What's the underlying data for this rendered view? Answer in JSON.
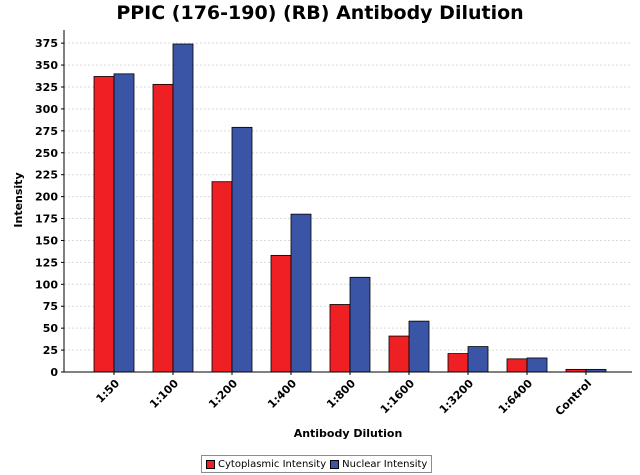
{
  "chart_data": {
    "type": "bar",
    "title": "PPIC (176-190) (RB) Antibody Dilution",
    "xlabel": "Antibody Dilution",
    "ylabel": "Intensity",
    "categories": [
      "1:50",
      "1:100",
      "1:200",
      "1:400",
      "1:800",
      "1:1600",
      "1:3200",
      "1:6400",
      "Control"
    ],
    "ylim": [
      0,
      390
    ],
    "yticks": [
      0,
      25,
      50,
      75,
      100,
      125,
      150,
      175,
      200,
      225,
      250,
      275,
      300,
      325,
      350,
      375
    ],
    "grid": true,
    "legend_position": "bottom-center",
    "series": [
      {
        "name": "Cytoplasmic Intensity",
        "color": "#ee2024",
        "values": [
          337,
          328,
          217,
          133,
          77,
          41,
          21,
          15,
          3
        ]
      },
      {
        "name": "Nuclear Intensity",
        "color": "#3a55a6",
        "values": [
          340,
          374,
          279,
          180,
          108,
          58,
          29,
          16,
          3
        ]
      }
    ]
  }
}
